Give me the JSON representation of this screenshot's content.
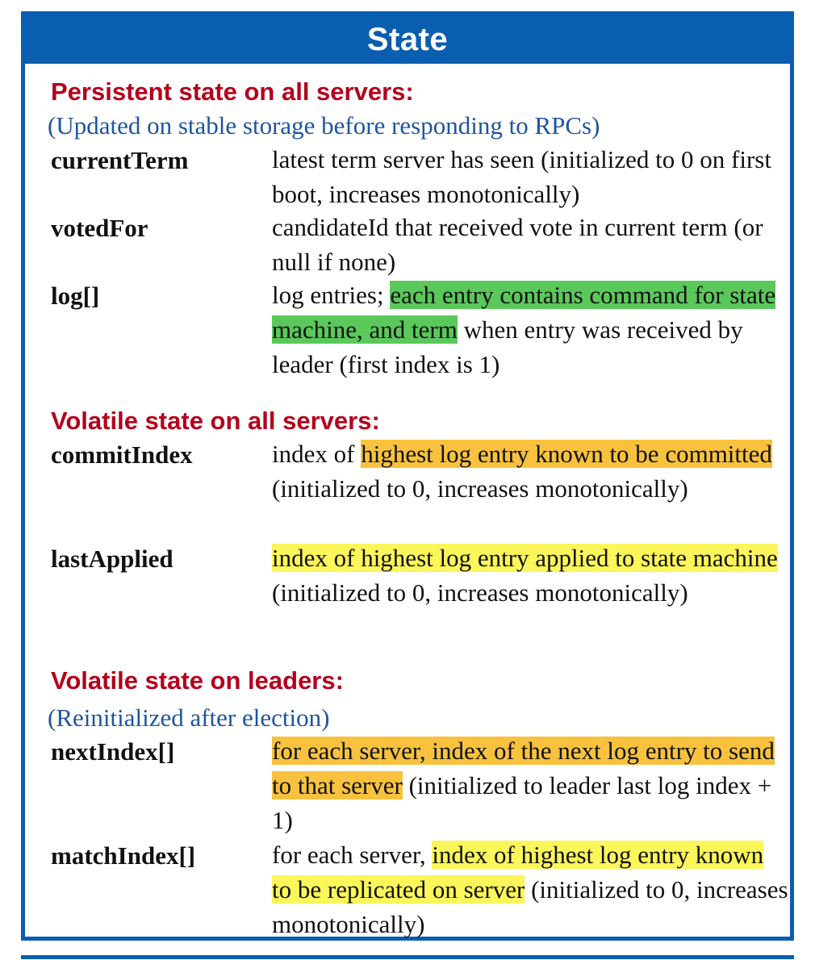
{
  "title": "State",
  "sections": [
    {
      "heading": "Persistent state on all servers:",
      "note": "(Updated on stable storage before responding to RPCs)",
      "fields": [
        {
          "name": "currentTerm",
          "desc": [
            {
              "t": "latest term server has seen (initialized to 0 on first boot, increases monotonically)"
            }
          ]
        },
        {
          "name": "votedFor",
          "desc": [
            {
              "t": "candidateId that received vote in current term (or null if none)"
            }
          ]
        },
        {
          "name": "log[]",
          "desc": [
            {
              "t": "log entries; "
            },
            {
              "t": "each entry contains command for state machine, and term",
              "hl": "green"
            },
            {
              "t": " when entry was received by leader (first index is 1)"
            }
          ]
        }
      ]
    },
    {
      "heading": "Volatile state on all servers:",
      "fields": [
        {
          "name": "commitIndex",
          "desc": [
            {
              "t": "index of "
            },
            {
              "t": "highest log entry known to be committed",
              "hl": "orange"
            },
            {
              "t": " (initialized to 0, increases monotonically)"
            }
          ]
        },
        {
          "name": "lastApplied",
          "desc": [
            {
              "t": "index of highest log entry applied to state machine",
              "hl": "yellow"
            },
            {
              "t": " (initialized to 0, increases monotonically)"
            }
          ]
        }
      ]
    },
    {
      "heading": "Volatile state on leaders:",
      "note": "(Reinitialized after election)",
      "fields": [
        {
          "name": "nextIndex[]",
          "desc": [
            {
              "t": "for each server, index of the next log entry to send to that server",
              "hl": "orange"
            },
            {
              "t": " (initialized to leader last log index + 1)"
            }
          ]
        },
        {
          "name": "matchIndex[]",
          "desc": [
            {
              "t": "for each server, "
            },
            {
              "t": "index of highest log entry known to be replicated on server",
              "hl": "yellow"
            },
            {
              "t": " (initialized to 0, increases monotonically)"
            }
          ]
        }
      ]
    }
  ],
  "colors": {
    "frame": "#0a5eb0",
    "heading": "#b3001b",
    "note": "#1e55a0",
    "highlight_green": "#5ac85a",
    "highlight_orange": "#f8c23e",
    "highlight_yellow": "#fbf65a"
  }
}
